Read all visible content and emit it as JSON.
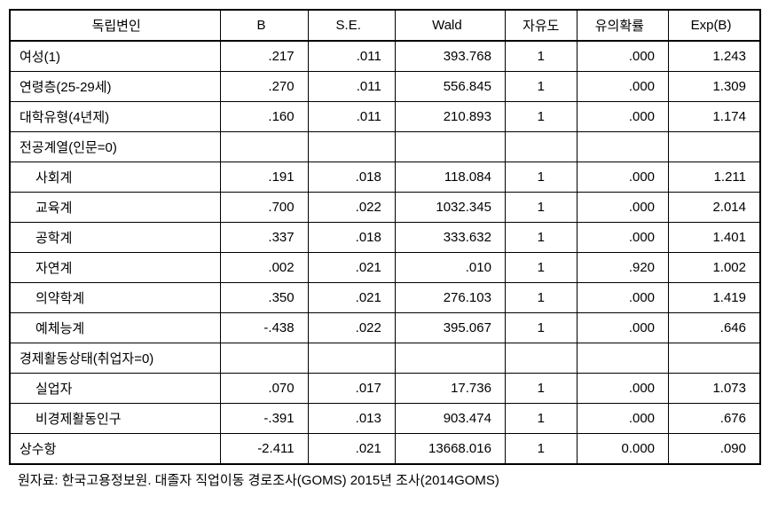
{
  "table": {
    "headers": [
      "독립변인",
      "B",
      "S.E.",
      "Wald",
      "자유도",
      "유의확률",
      "Exp(B)"
    ],
    "rows": [
      {
        "var": "여성(1)",
        "indent": false,
        "b": ".217",
        "se": ".011",
        "wald": "393.768",
        "df": "1",
        "sig": ".000",
        "exp": "1.243"
      },
      {
        "var": "연령층(25-29세)",
        "indent": false,
        "b": ".270",
        "se": ".011",
        "wald": "556.845",
        "df": "1",
        "sig": ".000",
        "exp": "1.309"
      },
      {
        "var": "대학유형(4년제)",
        "indent": false,
        "b": ".160",
        "se": ".011",
        "wald": "210.893",
        "df": "1",
        "sig": ".000",
        "exp": "1.174"
      },
      {
        "var": "전공계열(인문=0)",
        "indent": false,
        "b": "",
        "se": "",
        "wald": "",
        "df": "",
        "sig": "",
        "exp": ""
      },
      {
        "var": "사회계",
        "indent": true,
        "b": ".191",
        "se": ".018",
        "wald": "118.084",
        "df": "1",
        "sig": ".000",
        "exp": "1.211"
      },
      {
        "var": "교육계",
        "indent": true,
        "b": ".700",
        "se": ".022",
        "wald": "1032.345",
        "df": "1",
        "sig": ".000",
        "exp": "2.014"
      },
      {
        "var": "공학계",
        "indent": true,
        "b": ".337",
        "se": ".018",
        "wald": "333.632",
        "df": "1",
        "sig": ".000",
        "exp": "1.401"
      },
      {
        "var": "자연계",
        "indent": true,
        "b": ".002",
        "se": ".021",
        "wald": ".010",
        "df": "1",
        "sig": ".920",
        "exp": "1.002"
      },
      {
        "var": "의약학계",
        "indent": true,
        "b": ".350",
        "se": ".021",
        "wald": "276.103",
        "df": "1",
        "sig": ".000",
        "exp": "1.419"
      },
      {
        "var": "예체능계",
        "indent": true,
        "b": "-.438",
        "se": ".022",
        "wald": "395.067",
        "df": "1",
        "sig": ".000",
        "exp": ".646"
      },
      {
        "var": "경제활동상태(취업자=0)",
        "indent": false,
        "b": "",
        "se": "",
        "wald": "",
        "df": "",
        "sig": "",
        "exp": ""
      },
      {
        "var": "실업자",
        "indent": true,
        "b": ".070",
        "se": ".017",
        "wald": "17.736",
        "df": "1",
        "sig": ".000",
        "exp": "1.073"
      },
      {
        "var": "비경제활동인구",
        "indent": true,
        "b": "-.391",
        "se": ".013",
        "wald": "903.474",
        "df": "1",
        "sig": ".000",
        "exp": ".676"
      },
      {
        "var": "상수항",
        "indent": false,
        "b": "-2.411",
        "se": ".021",
        "wald": "13668.016",
        "df": "1",
        "sig": "0.000",
        "exp": ".090"
      }
    ]
  },
  "source": "원자료: 한국고용정보원. 대졸자 직업이동 경로조사(GOMS) 2015년 조사(2014GOMS)"
}
